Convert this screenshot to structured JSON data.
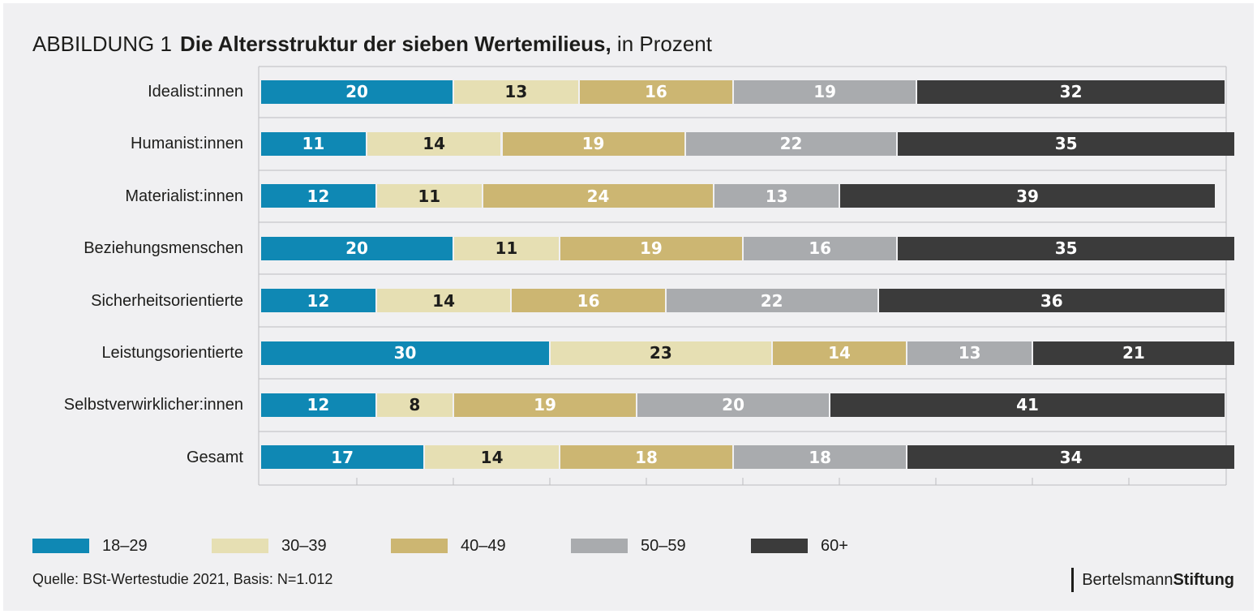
{
  "figure": {
    "label": "ABBILDUNG 1",
    "title": "Die Altersstruktur der sieben Wertemilieus,",
    "unit": "in Prozent"
  },
  "chart_data": {
    "type": "bar",
    "orientation": "horizontal",
    "stacked": true,
    "categories": [
      "Idealist:innen",
      "Humanist:innen",
      "Materialist:innen",
      "Beziehungsmenschen",
      "Sicherheitsorientierte",
      "Leistungsorientierte",
      "Selbstverwirklicher:innen",
      "Gesamt"
    ],
    "series": [
      {
        "name": "18–29",
        "color": "#0f88b4",
        "text_color": "#ffffff",
        "values": [
          20,
          11,
          12,
          20,
          12,
          30,
          12,
          17
        ]
      },
      {
        "name": "30–39",
        "color": "#e6dfb3",
        "text_color": "#1d1d1b",
        "values": [
          13,
          14,
          11,
          11,
          14,
          23,
          8,
          14
        ]
      },
      {
        "name": "40–49",
        "color": "#ccb672",
        "text_color": "#ffffff",
        "values": [
          16,
          19,
          24,
          19,
          16,
          14,
          19,
          18
        ]
      },
      {
        "name": "50–59",
        "color": "#a9abae",
        "text_color": "#ffffff",
        "values": [
          19,
          22,
          13,
          16,
          22,
          13,
          20,
          18
        ]
      },
      {
        "name": "60+",
        "color": "#3b3b3b",
        "text_color": "#ffffff",
        "values": [
          32,
          35,
          39,
          35,
          36,
          21,
          41,
          34
        ]
      }
    ],
    "xlim": [
      0,
      100
    ],
    "grid": true,
    "legend_position": "bottom"
  },
  "source": "Quelle: BSt-Wertestudie 2021, Basis: N=1.012",
  "brand": {
    "part1": "Bertelsmann",
    "part2": "Stiftung"
  }
}
